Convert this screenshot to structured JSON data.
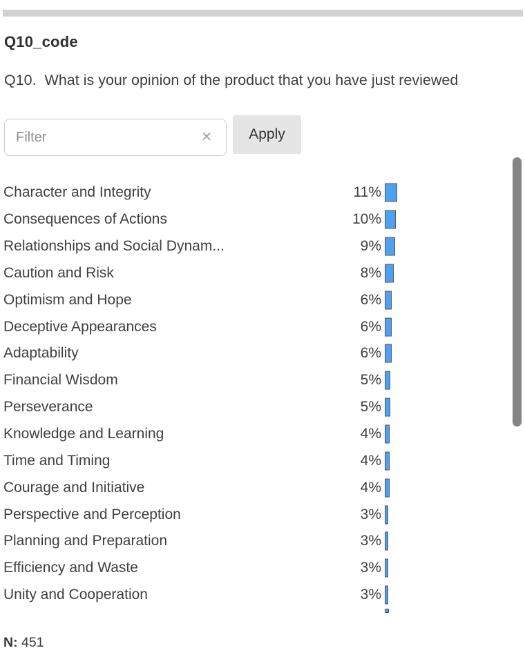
{
  "header": {
    "variable_name": "Q10_code",
    "question": "Q10.  What is your opinion of the product that you have just reviewed"
  },
  "filter": {
    "placeholder": "Filter",
    "clear_icon": "✕",
    "apply_label": "Apply"
  },
  "chart_data": {
    "type": "bar",
    "orientation": "horizontal",
    "categories": [
      "Character and Integrity",
      "Consequences of Actions",
      "Relationships and Social Dynam...",
      "Caution and Risk",
      "Optimism and Hope",
      "Deceptive Appearances",
      "Adaptability",
      "Financial Wisdom",
      "Perseverance",
      "Knowledge and Learning",
      "Time and Timing",
      "Courage and Initiative",
      "Perspective and Perception",
      "Planning and Preparation",
      "Efficiency and Waste",
      "Unity and Cooperation"
    ],
    "values": [
      11,
      10,
      9,
      8,
      6,
      6,
      6,
      5,
      5,
      4,
      4,
      4,
      3,
      3,
      3,
      3
    ],
    "unit": "%",
    "xlim": [
      0,
      100
    ],
    "bar_color": "#4ea1f2",
    "title": "",
    "xlabel": "",
    "ylabel": ""
  },
  "footer": {
    "n_label": "N:",
    "n_value": "451"
  }
}
